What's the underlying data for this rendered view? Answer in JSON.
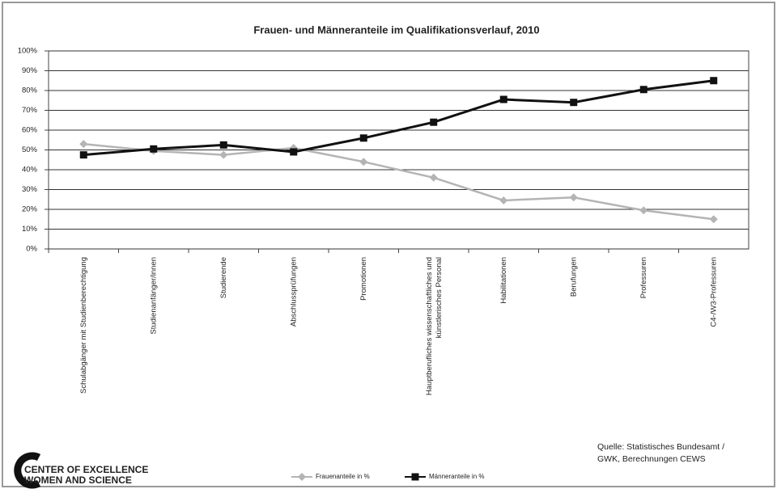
{
  "chart_data": {
    "type": "line",
    "title": "Frauen- und Männeranteile im Qualifikationsverlauf, 2010",
    "categories": [
      "Schulabgänger mit Studienberechtigung",
      "Studienanfänger/innen",
      "Studierende",
      "Abschlussprüfungen",
      "Promotionen",
      "Hauptberufliches wissenschaftliches und\nkünstlerisches Personal",
      "Habilitationen",
      "Berufungen",
      "Professuren",
      "C4-/W3-Professuren"
    ],
    "series": [
      {
        "name": "Frauenanteile in %",
        "color": "#b4b4b4",
        "marker": "diamond",
        "values": [
          53,
          49.5,
          47.5,
          51,
          44,
          36,
          24.5,
          26,
          19.5,
          15
        ]
      },
      {
        "name": "Männeranteile in %",
        "color": "#111111",
        "marker": "square",
        "values": [
          47.5,
          50.5,
          52.5,
          49,
          56,
          64,
          75.5,
          74,
          80.5,
          85
        ]
      }
    ],
    "ylim": [
      0,
      100
    ],
    "yticks": [
      {
        "value": 0,
        "label": "0%"
      },
      {
        "value": 10,
        "label": "10%"
      },
      {
        "value": 20,
        "label": "20%"
      },
      {
        "value": 30,
        "label": "30%"
      },
      {
        "value": 40,
        "label": "40%"
      },
      {
        "value": 50,
        "label": "50%"
      },
      {
        "value": 60,
        "label": "60%"
      },
      {
        "value": 70,
        "label": "70%"
      },
      {
        "value": 80,
        "label": "80%"
      },
      {
        "value": 90,
        "label": "90%"
      },
      {
        "value": 100,
        "label": "100%"
      }
    ],
    "grid": true,
    "legend": "bottom",
    "source": [
      "Quelle:  Statistisches Bundesamt  /",
      "GWK, Berechnungen  CEWS"
    ],
    "logo": [
      "CENTER OF EXCELLENCE",
      "WOMEN AND SCIENCE"
    ]
  }
}
